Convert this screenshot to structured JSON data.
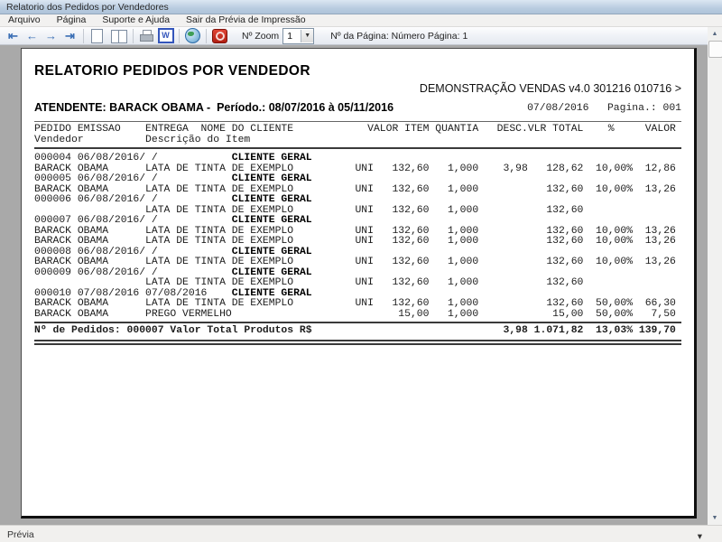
{
  "window": {
    "title": "Relatorio dos Pedidos por Vendedores"
  },
  "menu": {
    "items": [
      "Arquivo",
      "Página",
      "Suporte e Ajuda",
      "Sair da Prévia de Impressão"
    ]
  },
  "toolbar": {
    "first_icon": "⇤",
    "prev_icon": "←",
    "next_icon": "→",
    "last_icon": "⇥",
    "word_letter": "W",
    "zoom_label": "Nº Zoom",
    "zoom_value": "1",
    "dropdown_arrow": "▼",
    "page_info": "Nº da Página: Número Página: 1"
  },
  "statusbar": {
    "text": "Prévia",
    "grip_icon": "▾"
  },
  "report": {
    "title": "RELATORIO PEDIDOS POR VENDEDOR",
    "subtitle": "DEMONSTRAÇÃO VENDAS v4.0 301216 010716 >",
    "attendant_line": "ATENDENTE: BARACK OBAMA -  Período.: 08/07/2016 à 05/11/2016",
    "date": "07/08/2016",
    "page_label": "Pagina.: 001",
    "table": {
      "headers": {
        "pedido": "PEDIDO",
        "emissao": "EMISSAO",
        "entrega": "ENTREGA",
        "cliente": "NOME DO CLIENTE",
        "valor_item": "VALOR ITEM",
        "quantia": "QUANTIA",
        "desc": "DESC.",
        "total": "VLR TOTAL",
        "pct": "%",
        "valor": "VALOR",
        "vendedor": "Vendedor",
        "item": "Descrição do Item"
      },
      "rows": [
        {
          "t": "o",
          "pedido": "000004",
          "emissao": "06/08/2016",
          "entrega": "",
          "cliente": "CLIENTE GERAL"
        },
        {
          "t": "i",
          "vendedor": "BARACK OBAMA",
          "item": "LATA DE TINTA DE EXEMPLO",
          "un": "UNI",
          "valor_item": "132,60",
          "quantia": "1,000",
          "desc": "3,98",
          "total": "128,62",
          "pct": "10,00%",
          "valor": "12,86"
        },
        {
          "t": "o",
          "pedido": "000005",
          "emissao": "06/08/2016",
          "entrega": "",
          "cliente": "CLIENTE GERAL"
        },
        {
          "t": "i",
          "vendedor": "BARACK OBAMA",
          "item": "LATA DE TINTA DE EXEMPLO",
          "un": "UNI",
          "valor_item": "132,60",
          "quantia": "1,000",
          "desc": "",
          "total": "132,60",
          "pct": "10,00%",
          "valor": "13,26"
        },
        {
          "t": "o",
          "pedido": "000006",
          "emissao": "06/08/2016",
          "entrega": "",
          "cliente": "CLIENTE GERAL"
        },
        {
          "t": "i",
          "vendedor": "",
          "item": "LATA DE TINTA DE EXEMPLO",
          "un": "UNI",
          "valor_item": "132,60",
          "quantia": "1,000",
          "desc": "",
          "total": "132,60",
          "pct": "",
          "valor": ""
        },
        {
          "t": "o",
          "pedido": "000007",
          "emissao": "06/08/2016",
          "entrega": "",
          "cliente": "CLIENTE GERAL"
        },
        {
          "t": "i",
          "vendedor": "BARACK OBAMA",
          "item": "LATA DE TINTA DE EXEMPLO",
          "un": "UNI",
          "valor_item": "132,60",
          "quantia": "1,000",
          "desc": "",
          "total": "132,60",
          "pct": "10,00%",
          "valor": "13,26"
        },
        {
          "t": "i",
          "vendedor": "BARACK OBAMA",
          "item": "LATA DE TINTA DE EXEMPLO",
          "un": "UNI",
          "valor_item": "132,60",
          "quantia": "1,000",
          "desc": "",
          "total": "132,60",
          "pct": "10,00%",
          "valor": "13,26"
        },
        {
          "t": "o",
          "pedido": "000008",
          "emissao": "06/08/2016",
          "entrega": "",
          "cliente": "CLIENTE GERAL"
        },
        {
          "t": "i",
          "vendedor": "BARACK OBAMA",
          "item": "LATA DE TINTA DE EXEMPLO",
          "un": "UNI",
          "valor_item": "132,60",
          "quantia": "1,000",
          "desc": "",
          "total": "132,60",
          "pct": "10,00%",
          "valor": "13,26"
        },
        {
          "t": "o",
          "pedido": "000009",
          "emissao": "06/08/2016",
          "entrega": "",
          "cliente": "CLIENTE GERAL"
        },
        {
          "t": "i",
          "vendedor": "",
          "item": "LATA DE TINTA DE EXEMPLO",
          "un": "UNI",
          "valor_item": "132,60",
          "quantia": "1,000",
          "desc": "",
          "total": "132,60",
          "pct": "",
          "valor": ""
        },
        {
          "t": "o",
          "pedido": "000010",
          "emissao": "07/08/2016",
          "entrega": "07/08/2016",
          "cliente": "CLIENTE GERAL"
        },
        {
          "t": "i",
          "vendedor": "BARACK OBAMA",
          "item": "LATA DE TINTA DE EXEMPLO",
          "un": "UNI",
          "valor_item": "132,60",
          "quantia": "1,000",
          "desc": "",
          "total": "132,60",
          "pct": "50,00%",
          "valor": "66,30"
        },
        {
          "t": "i",
          "vendedor": "BARACK OBAMA",
          "item": "PREGO VERMELHO",
          "un": "",
          "valor_item": "15,00",
          "quantia": "1,000",
          "desc": "",
          "total": "15,00",
          "pct": "50,00%",
          "valor": "7,50"
        }
      ]
    },
    "totals": {
      "label": "Nº de Pedidos: 000007",
      "label2": "Valor Total Produtos R$",
      "desc": "3,98",
      "total": "1.071,82",
      "pct": "13,03%",
      "valor": "139,70"
    }
  }
}
